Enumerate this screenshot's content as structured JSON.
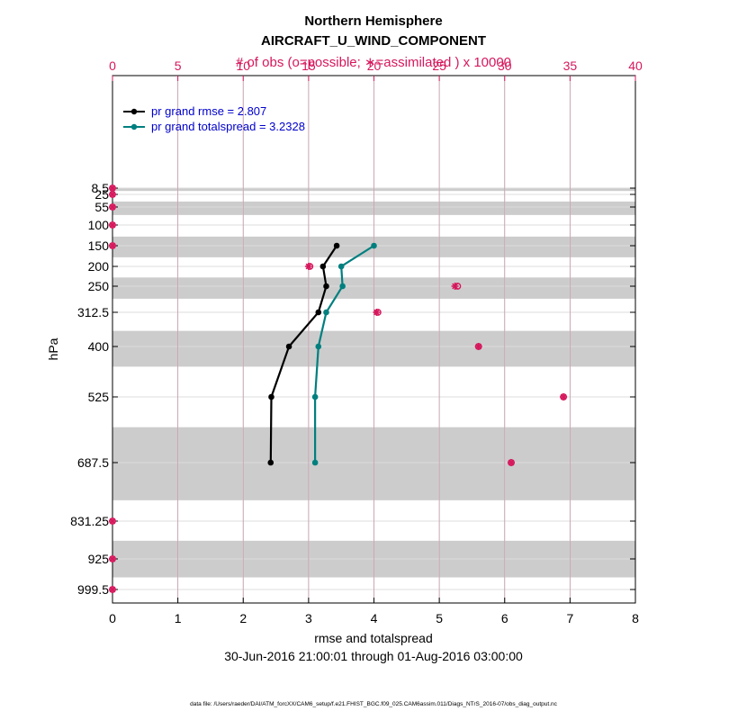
{
  "chart_data": {
    "type": "line",
    "title": "Northern Hemisphere",
    "subtitle": "AIRCRAFT_U_WIND_COMPONENT",
    "top_axis_label": "# of obs (o=possible; ∗=assimilated ) x 10000",
    "xlabel": "rmse and totalspread",
    "ylabel": "hPa",
    "date_range": "30-Jun-2016 21:00:01 through 01-Aug-2016 03:00:00",
    "footnote": "data file: /Users/raeder/DAI/ATM_forcXX/CAM6_setup/f.e21.FHIST_BGC.f09_025.CAM6assim.011/Diags_NTrS_2016-07/obs_diag_output.nc",
    "xlim": [
      0,
      8
    ],
    "xticks": [
      "0",
      "1",
      "2",
      "3",
      "4",
      "5",
      "6",
      "7",
      "8"
    ],
    "top_xlim": [
      0,
      40
    ],
    "top_xticks": [
      "0",
      "5",
      "10",
      "15",
      "20",
      "25",
      "30",
      "35",
      "40"
    ],
    "yticks": [
      "8.5",
      "25",
      "55",
      "100",
      "150",
      "200",
      "250",
      "312.5",
      "400",
      "525",
      "687.5",
      "831.25",
      "925",
      "999.5"
    ],
    "legend_location": "top-left",
    "grid": true,
    "colors": {
      "rmse": "#000000",
      "spread": "#007f7f",
      "obs": "#d6175c",
      "band": "#cccccc"
    },
    "series": [
      {
        "name": "pr grand rmse = 2.807",
        "levels": [
          "150",
          "200",
          "250",
          "312.5",
          "400",
          "525",
          "687.5"
        ],
        "values": [
          3.43,
          3.22,
          3.27,
          3.15,
          2.7,
          2.43,
          2.42
        ]
      },
      {
        "name": "pr grand totalspread = 3.2328",
        "levels": [
          "150",
          "200",
          "250",
          "312.5",
          "400",
          "525",
          "687.5"
        ],
        "values": [
          4.0,
          3.5,
          3.52,
          3.27,
          3.15,
          3.1,
          3.1
        ]
      }
    ],
    "obs_counts": {
      "levels": [
        "8.5",
        "25",
        "55",
        "100",
        "150",
        "200",
        "250",
        "312.5",
        "400",
        "525",
        "687.5",
        "831.25",
        "925",
        "999.5"
      ],
      "possible": [
        0,
        0,
        0,
        0,
        0,
        15.1,
        26.4,
        20.3,
        28.0,
        34.5,
        30.5,
        0,
        0,
        0
      ],
      "assimilated": [
        0,
        0,
        0,
        0,
        0,
        15.0,
        26.2,
        20.2,
        28.0,
        34.5,
        30.5,
        0,
        0,
        0
      ]
    }
  }
}
